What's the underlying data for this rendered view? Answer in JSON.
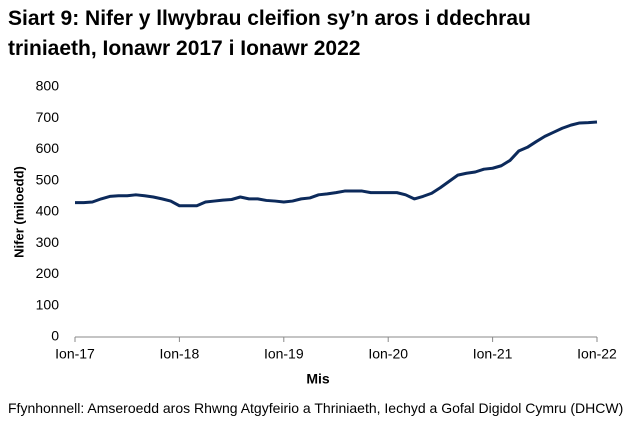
{
  "chart_data": {
    "type": "line",
    "title": "Siart 9: Nifer y llwybrau cleifion sy’n aros i ddechrau triniaeth, Ionawr 2017 i Ionawr 2022",
    "x_label": "Mis",
    "y_label": "Nifer (miloedd)",
    "source": "Ffynhonnell: Amseroedd aros Rhwng Atgyfeirio a Thriniaeth, Iechyd a Gofal Digidol Cymru (DHCW)",
    "color": "#0c2a5b",
    "categories": [
      "Ion-17",
      null,
      null,
      null,
      null,
      null,
      null,
      null,
      null,
      null,
      null,
      null,
      "Ion-18",
      null,
      null,
      null,
      null,
      null,
      null,
      null,
      null,
      null,
      null,
      null,
      "Ion-19",
      null,
      null,
      null,
      null,
      null,
      null,
      null,
      null,
      null,
      null,
      null,
      "Ion-20",
      null,
      null,
      null,
      null,
      null,
      null,
      null,
      null,
      null,
      null,
      null,
      "Ion-21",
      null,
      null,
      null,
      null,
      null,
      null,
      null,
      null,
      null,
      null,
      null,
      "Ion-22"
    ],
    "values": [
      430,
      430,
      432,
      442,
      450,
      452,
      452,
      455,
      452,
      448,
      442,
      435,
      420,
      420,
      420,
      432,
      435,
      438,
      440,
      448,
      442,
      442,
      437,
      435,
      432,
      435,
      442,
      445,
      455,
      458,
      462,
      467,
      467,
      467,
      462,
      462,
      462,
      462,
      455,
      442,
      450,
      460,
      478,
      498,
      518,
      524,
      528,
      537,
      540,
      548,
      565,
      595,
      607,
      625,
      642,
      655,
      668,
      678,
      685,
      686,
      688
    ],
    "ylim": [
      0,
      800
    ],
    "yticks": [
      0,
      100,
      200,
      300,
      400,
      500,
      600,
      700,
      800
    ],
    "grid": false
  }
}
